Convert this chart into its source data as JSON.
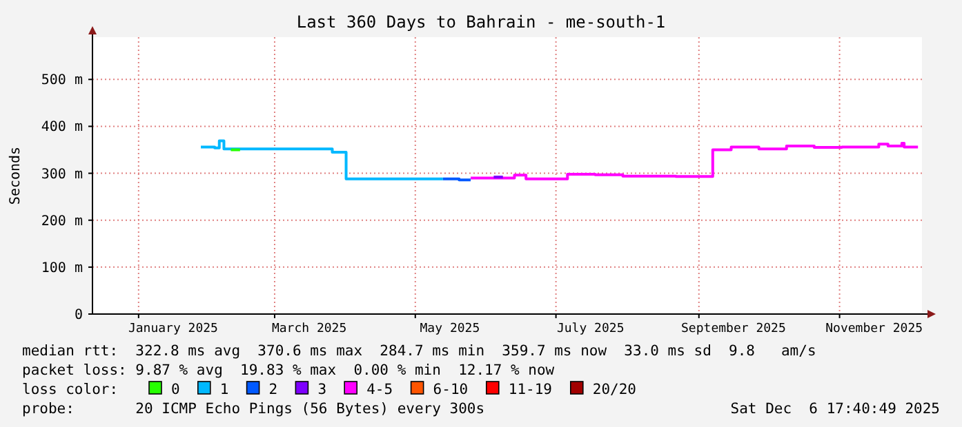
{
  "chart_data": {
    "type": "line",
    "title": "Last 360 Days to Bahrain - me-south-1",
    "ylabel": "Seconds",
    "legend_title": "loss color:",
    "legend": "bottom",
    "grid": true,
    "xlim": [
      "2024-12-12",
      "2025-12-06T17:40"
    ],
    "xticks": [
      {
        "value": "2025-01-01",
        "label": null
      },
      {
        "value": "2025-01-16",
        "label": "January 2025"
      },
      {
        "value": "2025-03-01",
        "label": null
      },
      {
        "value": "2025-03-16",
        "label": "March 2025"
      },
      {
        "value": "2025-05-01",
        "label": null
      },
      {
        "value": "2025-05-16",
        "label": "May 2025"
      },
      {
        "value": "2025-07-01",
        "label": null
      },
      {
        "value": "2025-07-16",
        "label": "July 2025"
      },
      {
        "value": "2025-09-01",
        "label": null
      },
      {
        "value": "2025-09-16",
        "label": "September 2025"
      },
      {
        "value": "2025-11-01",
        "label": null
      },
      {
        "value": "2025-11-16",
        "label": "November 2025"
      }
    ],
    "ylim": [
      0,
      590
    ],
    "yticks": [
      0,
      {
        "value": 100,
        "label": "100 m"
      },
      {
        "value": 200,
        "label": "200 m"
      },
      {
        "value": 300,
        "label": "300 m"
      },
      {
        "value": 400,
        "label": "400 m"
      },
      {
        "value": 500,
        "label": "500 m"
      }
    ],
    "series": [
      {
        "name": "0",
        "color": "#26ff00",
        "x": [
          "2025-02-10",
          "2025-02-14"
        ],
        "values": [
          350,
          350
        ]
      },
      {
        "name": "1",
        "color": "#00b8ff",
        "x": [
          "2025-01-28",
          "2025-02-03",
          "2025-02-05",
          "2025-02-07",
          "2025-02-12",
          "2025-03-02",
          "2025-03-20",
          "2025-03-26",
          "2025-03-31",
          "2025-04-01",
          "2025-04-19",
          "2025-05-01",
          "2025-05-13"
        ],
        "values": [
          356,
          354,
          369,
          352,
          352,
          352,
          352,
          345,
          345,
          288,
          288,
          288,
          288
        ]
      },
      {
        "name": "2",
        "color": "#0059ff",
        "x": [
          "2025-05-13",
          "2025-05-20",
          "2025-05-25"
        ],
        "values": [
          288,
          286,
          286
        ]
      },
      {
        "name": "3",
        "color": "#7e00ff",
        "x": [
          "2025-06-04",
          "2025-06-08"
        ],
        "values": [
          292,
          292
        ]
      },
      {
        "name": "4-5",
        "color": "#ff00fe",
        "x": [
          "2025-05-25",
          "2025-06-06",
          "2025-06-13",
          "2025-06-18",
          "2025-06-24",
          "2025-07-06",
          "2025-07-18",
          "2025-07-30",
          "2025-08-10",
          "2025-08-22",
          "2025-09-05",
          "2025-09-07",
          "2025-09-15",
          "2025-09-27",
          "2025-10-09",
          "2025-10-21",
          "2025-11-02",
          "2025-11-18",
          "2025-11-22",
          "2025-11-28",
          "2025-11-29",
          "2025-12-05"
        ],
        "values": [
          290,
          290,
          296,
          288,
          288,
          298,
          297,
          294,
          294,
          293,
          293,
          350,
          356,
          352,
          358,
          355,
          356,
          362,
          358,
          364,
          356,
          356
        ]
      },
      {
        "name": "6-10",
        "color": "#ff5500"
      },
      {
        "name": "11-19",
        "color": "#ff0000"
      },
      {
        "name": "20/20",
        "color": "#a10000"
      }
    ],
    "annotations": [
      "median rtt:  322.8 ms avg  370.6 ms max  284.7 ms min  359.7 ms now  33.0 ms sd  9.8   am/s",
      "packet loss: 9.87 % avg  19.83 % max  0.00 % min  12.17 % now",
      "probe:       20 ICMP Echo Pings (56 Bytes) every 300s",
      "Sat Dec  6 17:40:49 2025"
    ]
  }
}
